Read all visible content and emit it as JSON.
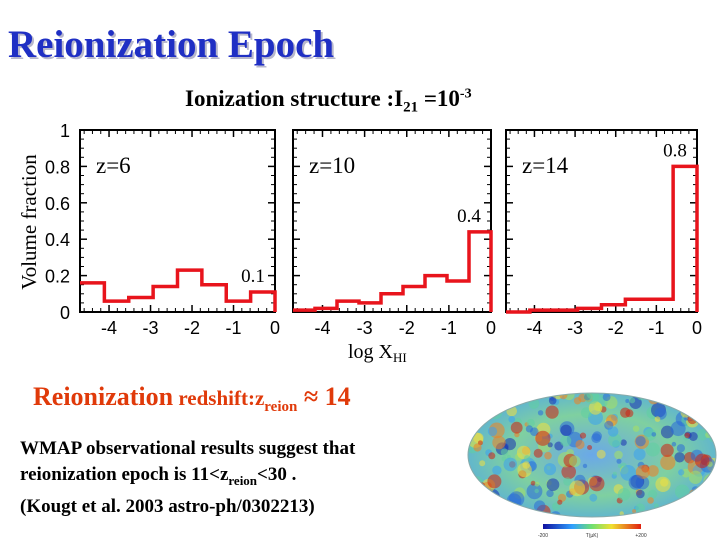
{
  "title": "Reionization Epoch",
  "figure": {
    "title_main": "Ionization structure :I",
    "title_sub": "21",
    "title_eq": " =10",
    "title_sup": "-3",
    "ylabel": "Volume fraction",
    "xlabel_main": "log X",
    "xlabel_sub": "HI"
  },
  "chart_data": {
    "type": "histogram",
    "panels": [
      {
        "label": "z=6",
        "values": [
          0.16,
          0.06,
          0.08,
          0.14,
          0.23,
          0.15,
          0.06,
          0.11
        ],
        "annotation": "0.1"
      },
      {
        "label": "z=10",
        "values": [
          0.01,
          0.02,
          0.06,
          0.05,
          0.1,
          0.14,
          0.2,
          0.17,
          0.44
        ],
        "annotation": "0.4"
      },
      {
        "label": "z=14",
        "values": [
          0.0,
          0.01,
          0.01,
          0.02,
          0.04,
          0.07,
          0.07,
          0.8
        ],
        "annotation": "0.8"
      }
    ],
    "xlim": [
      -4.7,
      0
    ],
    "ylim": [
      0,
      1
    ],
    "xticks": [
      "-4",
      "-3",
      "-2",
      "-1",
      "0"
    ],
    "yticks": [
      "0",
      "0.2",
      "0.4",
      "0.6",
      "0.8",
      "1"
    ],
    "line_color": "#e8141c"
  },
  "bottom": {
    "reion_label": "Reionization",
    "reion_mid": " redshift:z",
    "reion_sub": "reion",
    "reion_value": " ≈ 14",
    "wmap_line1": "WMAP observational results suggest that",
    "wmap_line2a": "reionization epoch is 11<z",
    "wmap_line2sub": "reion",
    "wmap_line2b": "<30 .",
    "wmap_line3": "(Kougt et al. 2003 astro-ph/0302213)"
  },
  "colorbar_ticks": [
    "-200",
    "T(µK)",
    "+200"
  ]
}
